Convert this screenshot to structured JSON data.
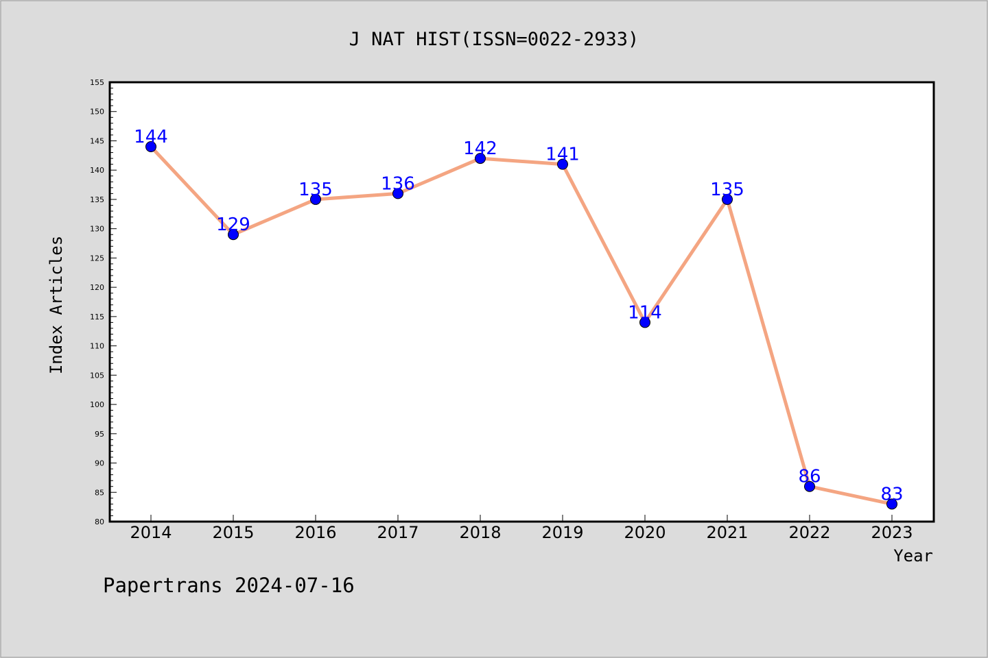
{
  "chart_data": {
    "type": "line",
    "title": "J NAT HIST(ISSN=0022-2933)",
    "xlabel": "Year",
    "ylabel": "Index Articles",
    "categories": [
      "2014",
      "2015",
      "2016",
      "2017",
      "2018",
      "2019",
      "2020",
      "2021",
      "2022",
      "2023"
    ],
    "series": [
      {
        "values": [
          144,
          129,
          135,
          136,
          142,
          141,
          114,
          135,
          86,
          83
        ]
      }
    ],
    "ylim": [
      80,
      155
    ],
    "yticks": [
      80,
      85,
      90,
      95,
      100,
      105,
      110,
      115,
      120,
      125,
      130,
      135,
      140,
      145,
      150,
      155
    ],
    "grid": false,
    "data_labels": true,
    "colors": {
      "line": "#f4a582",
      "marker": "#0000ff",
      "label": "#0000ff",
      "background": "#dcdcdc",
      "plot_background": "#ffffff"
    }
  },
  "footer": {
    "text": "Papertrans 2024-07-16"
  }
}
